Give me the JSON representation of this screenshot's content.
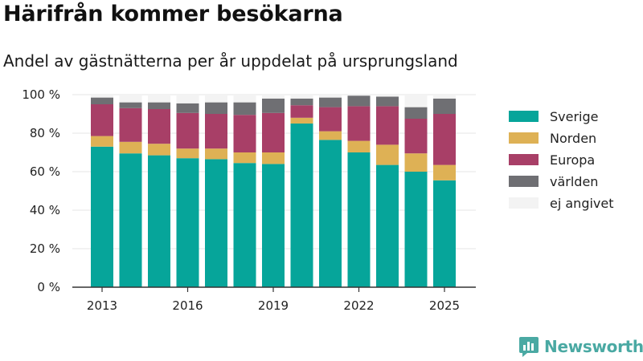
{
  "title": "Härifrån kommer besökarna",
  "subtitle": "Andel av gästnätterna per år uppdelat på ursprungsland",
  "brand": {
    "name": "Newsworthy",
    "icon": "newsworthy-logo-icon"
  },
  "colors": {
    "Sverige": "#06a59a",
    "Norden": "#deb155",
    "Europa": "#a83f67",
    "världen": "#6f6f73",
    "ej angivet": "#f3f3f3",
    "brand": "#4aa9a3"
  },
  "chart_data": {
    "type": "bar",
    "stacked": true,
    "categories": [
      "2013",
      "2014",
      "2015",
      "2016",
      "2017",
      "2018",
      "2019",
      "2020",
      "2021",
      "2022",
      "2023",
      "2024",
      "2025"
    ],
    "x_tick_labels": [
      "2013",
      "2016",
      "2019",
      "2022",
      "2025"
    ],
    "y_tick_labels": [
      "0 %",
      "20 %",
      "40 %",
      "60 %",
      "80 %",
      "100 %"
    ],
    "ylim": [
      0,
      100
    ],
    "grid": true,
    "legend_position": "right",
    "series": [
      {
        "name": "Sverige",
        "values": [
          73,
          69.5,
          68.5,
          67,
          66.5,
          64.5,
          64,
          85,
          76.5,
          70,
          63.5,
          60,
          55.5
        ]
      },
      {
        "name": "Norden",
        "values": [
          5.5,
          6,
          6,
          5,
          5.5,
          5.5,
          6,
          3,
          4.5,
          6,
          10.5,
          9.5,
          8
        ]
      },
      {
        "name": "Europa",
        "values": [
          16.5,
          17.5,
          18,
          18.5,
          18,
          19.5,
          20.5,
          6.5,
          12.5,
          18,
          20,
          18,
          26.5
        ]
      },
      {
        "name": "världen",
        "values": [
          3.5,
          3,
          3.5,
          5,
          6,
          6.5,
          7.5,
          3.5,
          5,
          5.5,
          5,
          6,
          8
        ]
      },
      {
        "name": "ej angivet",
        "values": [
          1.5,
          4,
          4,
          4.5,
          4,
          4,
          2,
          2,
          1.5,
          0.5,
          1,
          6.5,
          2
        ]
      }
    ]
  }
}
